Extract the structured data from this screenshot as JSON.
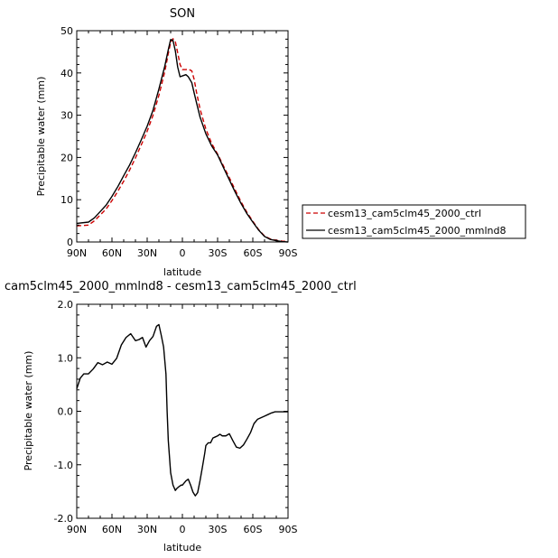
{
  "chart_data": [
    {
      "type": "line",
      "title": "SON",
      "xlabel": "latitude",
      "ylabel": "Precipitable water (mm)",
      "xlim": [
        90,
        -90
      ],
      "ylim": [
        0,
        50
      ],
      "xticks": [
        90,
        60,
        30,
        0,
        -30,
        -60,
        -90
      ],
      "xtick_labels": [
        "90N",
        "60N",
        "30N",
        "0",
        "30S",
        "60S",
        "90S"
      ],
      "yticks": [
        0,
        10,
        20,
        30,
        40,
        50
      ],
      "ytick_labels": [
        "0",
        "10",
        "20",
        "30",
        "40",
        "50"
      ],
      "grid": false,
      "legend_placement": "right",
      "series": [
        {
          "name": "cesm13_cam5clm45_2000_ctrl",
          "color": "#cc0000",
          "dash": "dashed",
          "x": [
            90,
            80,
            75,
            70,
            65,
            60,
            55,
            50,
            45,
            40,
            35,
            30,
            25,
            20,
            15,
            12,
            10,
            8,
            6,
            4,
            2,
            0,
            -3,
            -5,
            -8,
            -10,
            -12,
            -15,
            -20,
            -25,
            -30,
            -35,
            -40,
            -45,
            -50,
            -55,
            -60,
            -65,
            -70,
            -75,
            -80,
            -85,
            -90
          ],
          "y": [
            3.8,
            4.0,
            5.0,
            6.4,
            7.8,
            9.8,
            12.0,
            14.4,
            17.0,
            19.9,
            23.0,
            26.2,
            30.0,
            34.7,
            40.3,
            44.6,
            47.2,
            48.1,
            47.4,
            44.8,
            42.0,
            40.8,
            40.8,
            40.9,
            40.5,
            38.5,
            35.5,
            31.5,
            26.7,
            23.3,
            20.8,
            18.0,
            15.2,
            12.3,
            9.5,
            7.0,
            4.9,
            2.9,
            1.4,
            0.7,
            0.4,
            0.2,
            0.1
          ]
        },
        {
          "name": "cesm13_cam5clm45_2000_mmlnd8",
          "color": "#000000",
          "dash": "solid",
          "x": [
            90,
            80,
            75,
            70,
            65,
            60,
            55,
            50,
            45,
            40,
            35,
            30,
            25,
            20,
            15,
            12,
            10,
            8,
            6,
            4,
            2,
            0,
            -3,
            -5,
            -8,
            -10,
            -12,
            -15,
            -20,
            -25,
            -30,
            -35,
            -40,
            -45,
            -50,
            -55,
            -60,
            -65,
            -70,
            -75,
            -80,
            -85,
            -90
          ],
          "y": [
            4.4,
            4.7,
            5.7,
            7.2,
            8.7,
            10.8,
            13.1,
            15.7,
            18.2,
            21.1,
            24.2,
            27.4,
            31.2,
            36.2,
            41.6,
            45.5,
            47.9,
            47.7,
            45.2,
            41.4,
            39.1,
            39.3,
            39.6,
            39.1,
            37.7,
            35.3,
            33.0,
            29.6,
            25.6,
            22.7,
            20.6,
            17.6,
            14.7,
            11.8,
            9.1,
            6.7,
            4.7,
            2.8,
            1.3,
            0.6,
            0.3,
            0.1,
            0.0
          ]
        }
      ]
    },
    {
      "type": "line",
      "title": "cam5clm45_2000_mmlnd8 - cesm13_cam5clm45_2000_ctrl",
      "xlabel": "latitude",
      "ylabel": "Precipitable water (mm)",
      "xlim": [
        90,
        -90
      ],
      "ylim": [
        -2.0,
        2.0
      ],
      "xticks": [
        90,
        60,
        30,
        0,
        -30,
        -60,
        -90
      ],
      "xtick_labels": [
        "90N",
        "60N",
        "30N",
        "0",
        "30S",
        "60S",
        "90S"
      ],
      "yticks": [
        -2.0,
        -1.0,
        0.0,
        1.0,
        2.0
      ],
      "ytick_labels": [
        "-2.0",
        "-1.0",
        "0.0",
        "1.0",
        "2.0"
      ],
      "grid": false,
      "series": [
        {
          "color": "#000000",
          "dash": "solid",
          "x": [
            90,
            87,
            84,
            80,
            76,
            72,
            68,
            64,
            60,
            56,
            52,
            48,
            44,
            40,
            37,
            34,
            31,
            28,
            25,
            22,
            20,
            18,
            16,
            14,
            13,
            12,
            10,
            8,
            6,
            5,
            3,
            1,
            0,
            -3,
            -5,
            -7,
            -9,
            -11,
            -13,
            -15,
            -17,
            -19,
            -20,
            -22,
            -24,
            -26,
            -28,
            -30,
            -32,
            -34,
            -37,
            -40,
            -43,
            -46,
            -49,
            -52,
            -55,
            -58,
            -61,
            -64,
            -67,
            -70,
            -73,
            -76,
            -79,
            -82,
            -85,
            -88,
            -90
          ],
          "y": [
            0.42,
            0.62,
            0.7,
            0.7,
            0.79,
            0.91,
            0.87,
            0.92,
            0.88,
            0.99,
            1.24,
            1.38,
            1.45,
            1.32,
            1.34,
            1.38,
            1.2,
            1.32,
            1.4,
            1.59,
            1.62,
            1.42,
            1.2,
            0.7,
            0.0,
            -0.55,
            -1.15,
            -1.38,
            -1.48,
            -1.45,
            -1.41,
            -1.38,
            -1.38,
            -1.3,
            -1.27,
            -1.38,
            -1.51,
            -1.58,
            -1.52,
            -1.3,
            -1.05,
            -0.79,
            -0.64,
            -0.59,
            -0.59,
            -0.5,
            -0.48,
            -0.46,
            -0.43,
            -0.46,
            -0.46,
            -0.42,
            -0.55,
            -0.67,
            -0.69,
            -0.63,
            -0.52,
            -0.4,
            -0.23,
            -0.15,
            -0.12,
            -0.09,
            -0.06,
            -0.03,
            -0.01,
            -0.01,
            -0.01,
            -0.01,
            -0.01
          ]
        }
      ]
    }
  ]
}
